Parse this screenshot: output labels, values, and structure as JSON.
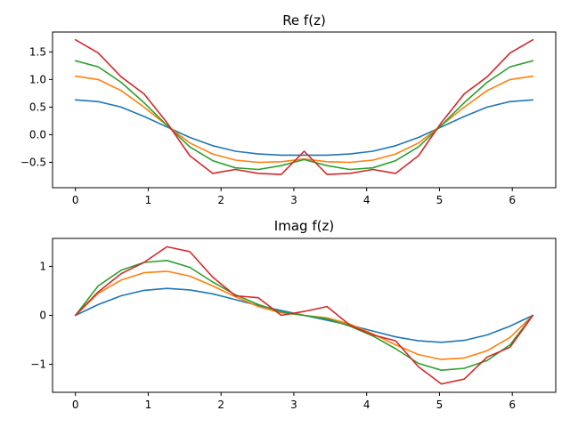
{
  "chart_data": [
    {
      "type": "line",
      "title": "Re f(z)",
      "xlabel": "",
      "ylabel": "",
      "xlim": [
        -0.314,
        6.597
      ],
      "ylim": [
        -0.96,
        1.86
      ],
      "xticks": [
        0,
        1,
        2,
        3,
        4,
        5,
        6
      ],
      "xtick_labels": [
        "0",
        "1",
        "2",
        "3",
        "4",
        "5",
        "6"
      ],
      "yticks": [
        -0.5,
        0.0,
        0.5,
        1.0,
        1.5
      ],
      "ytick_labels": [
        "−0.5",
        "0.0",
        "0.5",
        "1.0",
        "1.5"
      ],
      "grid": false,
      "x": [
        0,
        0.314,
        0.628,
        0.942,
        1.257,
        1.571,
        1.885,
        2.199,
        2.513,
        2.827,
        3.142,
        3.456,
        3.77,
        4.084,
        4.398,
        4.712,
        5.027,
        5.341,
        5.655,
        5.969,
        6.283
      ],
      "series": [
        {
          "color": "#1f77b4",
          "values": [
            0.63,
            0.6,
            0.5,
            0.33,
            0.14,
            -0.05,
            -0.2,
            -0.3,
            -0.35,
            -0.37,
            -0.37,
            -0.37,
            -0.35,
            -0.3,
            -0.2,
            -0.05,
            0.14,
            0.33,
            0.5,
            0.6,
            0.63
          ]
        },
        {
          "color": "#ff7f0e",
          "values": [
            1.06,
            1.0,
            0.8,
            0.5,
            0.17,
            -0.15,
            -0.35,
            -0.46,
            -0.5,
            -0.49,
            -0.44,
            -0.49,
            -0.5,
            -0.46,
            -0.35,
            -0.15,
            0.17,
            0.5,
            0.8,
            1.0,
            1.06
          ]
        },
        {
          "color": "#2ca02c",
          "values": [
            1.34,
            1.23,
            0.95,
            0.58,
            0.17,
            -0.22,
            -0.47,
            -0.6,
            -0.63,
            -0.56,
            -0.45,
            -0.56,
            -0.63,
            -0.6,
            -0.47,
            -0.22,
            0.17,
            0.58,
            0.95,
            1.23,
            1.34
          ]
        },
        {
          "color": "#d62728",
          "values": [
            1.72,
            1.48,
            1.05,
            0.74,
            0.22,
            -0.38,
            -0.7,
            -0.63,
            -0.7,
            -0.72,
            -0.3,
            -0.72,
            -0.7,
            -0.63,
            -0.7,
            -0.38,
            0.22,
            0.74,
            1.05,
            1.48,
            1.72
          ]
        }
      ]
    },
    {
      "type": "line",
      "title": "Imag f(z)",
      "xlabel": "",
      "ylabel": "",
      "xlim": [
        -0.314,
        6.597
      ],
      "ylim": [
        -1.57,
        1.57
      ],
      "xticks": [
        0,
        1,
        2,
        3,
        4,
        5,
        6
      ],
      "xtick_labels": [
        "0",
        "1",
        "2",
        "3",
        "4",
        "5",
        "6"
      ],
      "yticks": [
        -1,
        0,
        1
      ],
      "ytick_labels": [
        "−1",
        "0",
        "1"
      ],
      "grid": false,
      "x": [
        0,
        0.314,
        0.628,
        0.942,
        1.257,
        1.571,
        1.885,
        2.199,
        2.513,
        2.827,
        3.142,
        3.456,
        3.77,
        4.084,
        4.398,
        4.712,
        5.027,
        5.341,
        5.655,
        5.969,
        6.283
      ],
      "series": [
        {
          "color": "#1f77b4",
          "values": [
            0,
            0.22,
            0.4,
            0.51,
            0.55,
            0.52,
            0.44,
            0.32,
            0.2,
            0.1,
            0,
            -0.1,
            -0.2,
            -0.32,
            -0.44,
            -0.52,
            -0.55,
            -0.51,
            -0.4,
            -0.22,
            0
          ]
        },
        {
          "color": "#ff7f0e",
          "values": [
            0,
            0.45,
            0.72,
            0.87,
            0.9,
            0.8,
            0.6,
            0.38,
            0.18,
            0.05,
            0,
            -0.05,
            -0.18,
            -0.38,
            -0.6,
            -0.8,
            -0.9,
            -0.87,
            -0.72,
            -0.45,
            0
          ]
        },
        {
          "color": "#2ca02c",
          "values": [
            0,
            0.6,
            0.92,
            1.08,
            1.12,
            0.98,
            0.68,
            0.42,
            0.22,
            0.07,
            0,
            -0.07,
            -0.22,
            -0.42,
            -0.68,
            -0.98,
            -1.12,
            -1.08,
            -0.92,
            -0.6,
            0
          ]
        },
        {
          "color": "#d62728",
          "values": [
            0,
            0.48,
            0.85,
            1.08,
            1.4,
            1.3,
            0.78,
            0.4,
            0.36,
            0.0,
            0.08,
            0.18,
            -0.2,
            -0.4,
            -0.52,
            -1.05,
            -1.4,
            -1.3,
            -0.85,
            -0.65,
            0
          ]
        }
      ]
    }
  ]
}
